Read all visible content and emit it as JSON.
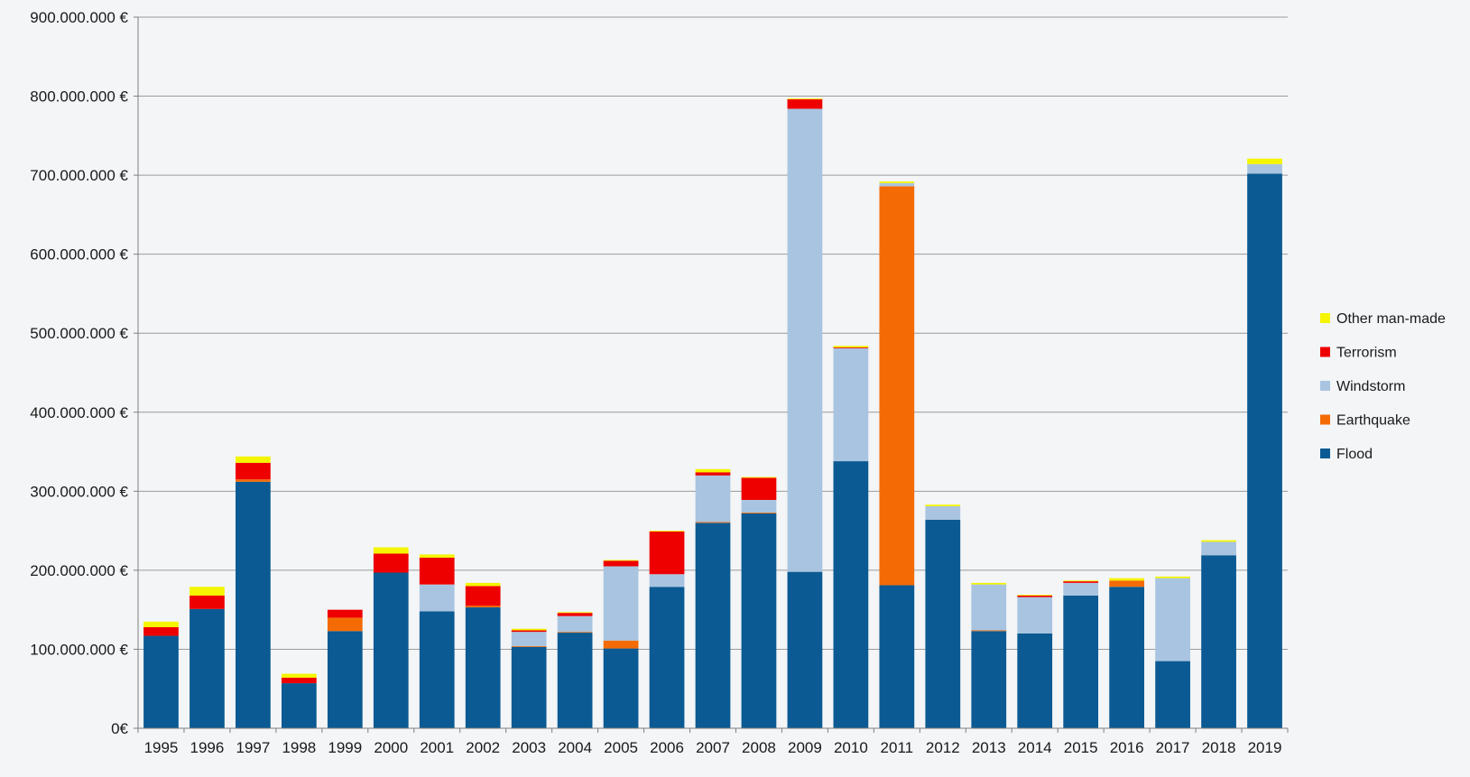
{
  "chart_data": {
    "type": "bar",
    "stacked": true,
    "title": "",
    "xlabel": "",
    "ylabel": "",
    "ylim": [
      0,
      900000000
    ],
    "yticks": [
      0,
      100000000,
      200000000,
      300000000,
      400000000,
      500000000,
      600000000,
      700000000,
      800000000,
      900000000
    ],
    "ytick_labels": [
      "0€",
      "100.000.000 €",
      "200.000.000 €",
      "300.000.000 €",
      "400.000.000 €",
      "500.000.000 €",
      "600.000.000 €",
      "700.000.000 €",
      "800.000.000 €",
      "900.000.000 €"
    ],
    "grid": true,
    "legend_position": "right",
    "categories": [
      "1995",
      "1996",
      "1997",
      "1998",
      "1999",
      "2000",
      "2001",
      "2002",
      "2003",
      "2004",
      "2005",
      "2006",
      "2007",
      "2008",
      "2009",
      "2010",
      "2011",
      "2012",
      "2013",
      "2014",
      "2015",
      "2016",
      "2017",
      "2018",
      "2019"
    ],
    "series": [
      {
        "name": "Flood",
        "color": "#0b5a93",
        "values": [
          117000000,
          151000000,
          312000000,
          57000000,
          123000000,
          197000000,
          148000000,
          153000000,
          103000000,
          121000000,
          101000000,
          179000000,
          260000000,
          272000000,
          198000000,
          338000000,
          181000000,
          264000000,
          123000000,
          120000000,
          168000000,
          179000000,
          85000000,
          219000000,
          702000000
        ]
      },
      {
        "name": "Earthquake",
        "color": "#f46b06",
        "values": [
          0,
          0,
          3000000,
          0,
          17000000,
          0,
          0,
          2000000,
          1000000,
          1000000,
          10000000,
          0,
          1000000,
          1000000,
          0,
          0,
          505000000,
          0,
          1000000,
          0,
          0,
          8000000,
          0,
          0,
          0
        ]
      },
      {
        "name": "Windstorm",
        "color": "#a9c4e0",
        "values": [
          0,
          0,
          0,
          0,
          0,
          0,
          34000000,
          0,
          18000000,
          20000000,
          94000000,
          16000000,
          59000000,
          16000000,
          586000000,
          143000000,
          4000000,
          17000000,
          58000000,
          46000000,
          16000000,
          0,
          105000000,
          17000000,
          12000000
        ]
      },
      {
        "name": "Terrorism",
        "color": "#ee0000",
        "values": [
          11000000,
          17000000,
          21000000,
          7000000,
          10000000,
          24000000,
          34000000,
          25000000,
          2000000,
          4000000,
          7000000,
          54000000,
          4000000,
          28000000,
          12000000,
          1000000,
          0,
          0,
          0,
          2000000,
          2000000,
          0,
          0,
          0,
          0
        ]
      },
      {
        "name": "Other man-made",
        "color": "#f5f500",
        "values": [
          7000000,
          11000000,
          8000000,
          5000000,
          0,
          8000000,
          4000000,
          4000000,
          2000000,
          1000000,
          1000000,
          1000000,
          4000000,
          1000000,
          1000000,
          2000000,
          2000000,
          2000000,
          2000000,
          1000000,
          1000000,
          3000000,
          2000000,
          2000000,
          7000000
        ]
      }
    ]
  }
}
